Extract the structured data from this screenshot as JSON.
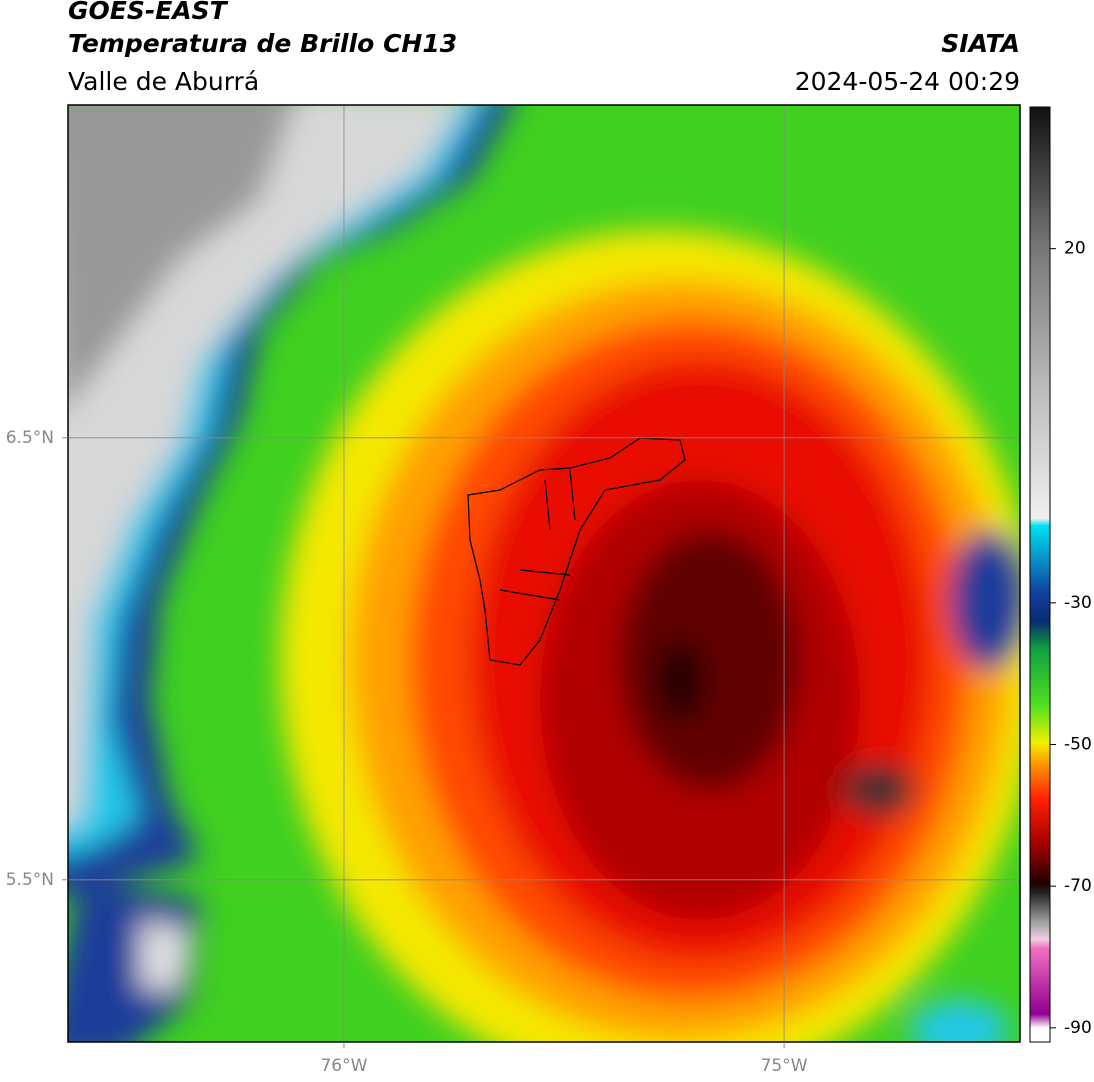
{
  "header": {
    "title": "GOES-EAST",
    "subtitle": "Temperatura de Brillo CH13",
    "region": "Valle de Aburrá",
    "source": "SIATA",
    "datetime": "2024-05-24 00:29"
  },
  "map": {
    "lonlim": [
      -76.627,
      -74.464
    ],
    "latlim": [
      5.133,
      7.253
    ],
    "lonticks": [
      {
        "value": -76,
        "label": "76°W"
      },
      {
        "value": -75,
        "label": "75°W"
      }
    ],
    "latticks": [
      {
        "value": 6.5,
        "label": "6.5°N"
      },
      {
        "value": 5.5,
        "label": "5.5°N"
      }
    ]
  },
  "colorbar": {
    "lim": [
      -92,
      40
    ],
    "ticks": [
      20,
      -30,
      -50,
      -70,
      -90
    ]
  }
}
